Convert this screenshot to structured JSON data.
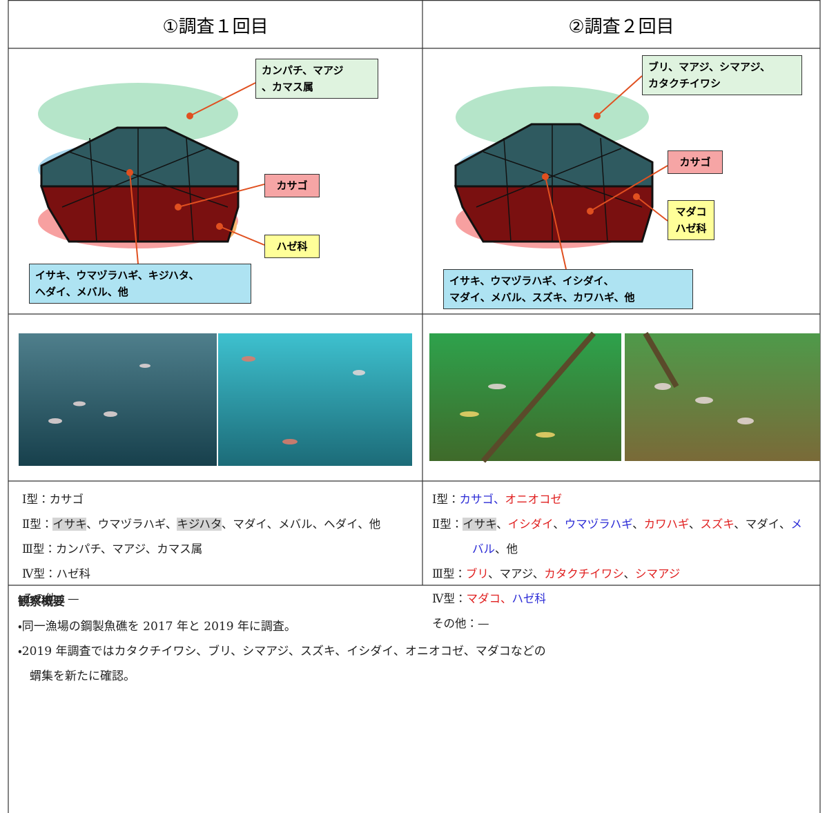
{
  "table": {
    "headers": [
      "①調査１回目",
      "②調査２回目"
    ],
    "diagrams": [
      {
        "top": [
          "カンパチ、マアジ",
          "、カマス属"
        ],
        "middle": [
          "カサゴ"
        ],
        "lower": [
          "ハゼ科"
        ],
        "bottom": [
          "イサキ、ウマヅラハギ、キジハタ、",
          "ヘダイ、メバル、他"
        ]
      },
      {
        "top": [
          "ブリ、マアジ、シマアジ、",
          "カタクチイワシ"
        ],
        "middle": [
          "カサゴ"
        ],
        "lower": [
          "マダコ",
          "ハゼ科"
        ],
        "bottom": [
          "イサキ、ウマヅラハギ、イシダイ、",
          "マダイ、メバル、スズキ、カワハギ、他"
        ]
      }
    ],
    "lists": [
      [
        {
          "label": "Ⅰ型：",
          "items": [
            {
              "text": "カサゴ"
            }
          ]
        },
        {
          "label": "Ⅱ型：",
          "items": [
            {
              "text": "イサキ",
              "highlight": true
            },
            {
              "text": "、ウマヅラハギ、"
            },
            {
              "text": "キジハタ",
              "highlight": true
            },
            {
              "text": "、マダイ、メバル、ヘダイ、他"
            }
          ]
        },
        {
          "label": "Ⅲ型：",
          "items": [
            {
              "text": "カンパチ、マアジ、カマス属"
            }
          ]
        },
        {
          "label": "Ⅳ型：",
          "items": [
            {
              "text": "ハゼ科"
            }
          ]
        },
        {
          "label": "その他：",
          "items": [
            {
              "text": "—"
            }
          ]
        }
      ],
      [
        {
          "label": "Ⅰ型：",
          "items": [
            {
              "text": "カサゴ、",
              "color": "#2b2bd6"
            },
            {
              "text": "オニオコゼ",
              "color": "#e02020"
            }
          ]
        },
        {
          "label": "Ⅱ型：",
          "items": [
            {
              "text": "イサキ",
              "highlight": true
            },
            {
              "text": "、"
            },
            {
              "text": "イシダイ",
              "color": "#e02020"
            },
            {
              "text": "、"
            },
            {
              "text": "ウマヅラハギ",
              "color": "#2b2bd6"
            },
            {
              "text": "、"
            },
            {
              "text": "カワハギ",
              "color": "#e02020"
            },
            {
              "text": "、"
            },
            {
              "text": "スズキ",
              "color": "#e02020"
            },
            {
              "text": "、マダイ、"
            },
            {
              "text": "メバル",
              "color": "#2b2bd6"
            },
            {
              "text": "、他"
            }
          ]
        },
        {
          "label": "Ⅲ型：",
          "items": [
            {
              "text": "ブリ",
              "color": "#e02020"
            },
            {
              "text": "、マアジ、"
            },
            {
              "text": "カタクチイワシ",
              "color": "#e02020"
            },
            {
              "text": "、"
            },
            {
              "text": "シマアジ",
              "color": "#e02020"
            }
          ]
        },
        {
          "label": "Ⅳ型：",
          "items": [
            {
              "text": "マダコ、",
              "color": "#e02020"
            },
            {
              "text": "ハゼ科",
              "color": "#2b2bd6"
            }
          ]
        },
        {
          "label": "その他：",
          "items": [
            {
              "text": "—"
            }
          ]
        }
      ]
    ],
    "summary": {
      "title": "観察概要",
      "lines": [
        "・同一漁場の鋼製魚礁を 2017 年と 2019 年に調査。",
        "・2019 年調査ではカタクチイワシ、ブリ、シマアジ、スズキ、イシダイ、オニオコゼ、マダコなどの",
        "蝟集を新たに確認。"
      ]
    }
  }
}
